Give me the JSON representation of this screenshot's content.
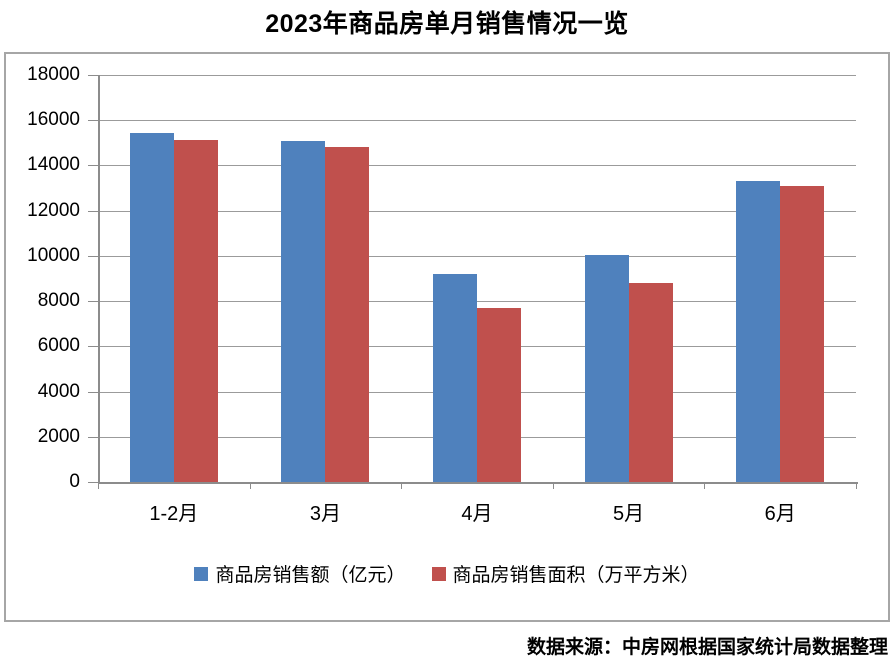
{
  "title": "2023年商品房单月销售情况一览",
  "footer": {
    "source_note": "数据来源：中房网根据国家统计局数据整理"
  },
  "colors": {
    "series_blue": "#4F81BD",
    "series_red": "#C0504D",
    "gridline": "#9B9B9B",
    "axis": "#8C8C8C",
    "frame_border": "#A6A6A6",
    "text": "#000000"
  },
  "chart_data": {
    "type": "bar",
    "title": "2023年商品房单月销售情况一览",
    "categories": [
      "1-2月",
      "3月",
      "4月",
      "5月",
      "6月"
    ],
    "series": [
      {
        "name": "商品房销售额（亿元）",
        "color": "#4F81BD",
        "values": [
          15449,
          15096,
          9205,
          10037,
          13305
        ]
      },
      {
        "name": "商品房销售面积（万平方米）",
        "color": "#C0504D",
        "values": [
          15133,
          14813,
          7690,
          8804,
          13075
        ]
      }
    ],
    "xlabel": "",
    "ylabel": "",
    "ylim": [
      0,
      18000
    ],
    "ytick_step": 2000,
    "grid": true,
    "legend_position": "bottom"
  }
}
